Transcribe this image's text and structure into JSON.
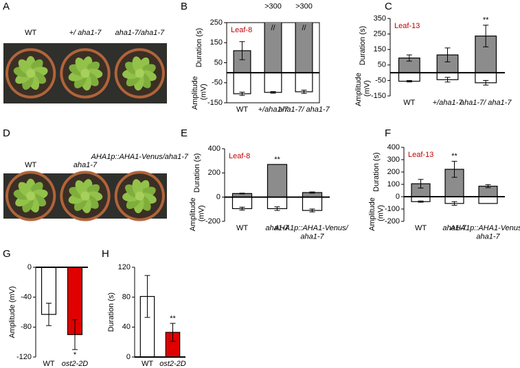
{
  "photos": [
    {
      "panel": "A",
      "labels": [
        "WT",
        "+/ aha1-7",
        "aha1-7/aha1-7"
      ]
    },
    {
      "panel": "D",
      "labels": [
        "WT",
        "aha1-7",
        "AHA1p::AHA1-Venus/aha1-7"
      ]
    }
  ],
  "chart_data": [
    {
      "type": "bar",
      "panel": "B",
      "note": "Leaf-8",
      "categories": [
        "WT",
        "+/aha1-7",
        "aha1-7/ aha1-7"
      ],
      "ylim": [
        -150,
        250
      ],
      "yticks": [
        250,
        150,
        50,
        -50,
        -150
      ],
      "series": [
        {
          "name": "Duration (s)",
          "color": "#8c8c8c",
          "values": [
            110,
            300,
            300
          ],
          "value_labels": [
            null,
            ">300",
            ">300"
          ],
          "errors": [
            45,
            null,
            null
          ]
        },
        {
          "name": "Amplitude (mV)",
          "color": "#ffffff",
          "values": [
            -105,
            -98,
            -95
          ],
          "errors": [
            8,
            4,
            8
          ]
        }
      ],
      "annotations": [
        {
          "text": "//",
          "category": 1
        },
        {
          "text": "//",
          "category": 2
        }
      ]
    },
    {
      "type": "bar",
      "panel": "C",
      "note": "Leaf-13",
      "categories": [
        "WT",
        "+/aha1-7",
        "aha1-7/ aha1-7"
      ],
      "ylim": [
        -150,
        350
      ],
      "yticks": [
        350,
        250,
        150,
        50,
        -50,
        -150
      ],
      "series": [
        {
          "name": "Duration (s)",
          "color": "#8c8c8c",
          "values": [
            95,
            115,
            237
          ],
          "errors": [
            20,
            45,
            70
          ]
        },
        {
          "name": "Amplitude (mV)",
          "color": "#ffffff",
          "values": [
            -55,
            -45,
            -65
          ],
          "errors": [
            5,
            15,
            15
          ]
        }
      ],
      "annotations": [
        {
          "text": "**",
          "category": 2,
          "series": 0
        }
      ]
    },
    {
      "type": "bar",
      "panel": "E",
      "note": "Leaf-8",
      "categories": [
        "WT",
        "aha1-7",
        "AHA1p::AHA1-Venus/ aha1-7"
      ],
      "ylim": [
        -200,
        400
      ],
      "yticks": [
        400,
        200,
        0,
        -200
      ],
      "series": [
        {
          "name": "Duration (s)",
          "color": "#8c8c8c",
          "values": [
            30,
            270,
            38
          ],
          "errors": [
            3,
            null,
            5
          ]
        },
        {
          "name": "Amplitude (mV)",
          "color": "#ffffff",
          "values": [
            -95,
            -95,
            -110
          ],
          "errors": [
            12,
            15,
            12
          ]
        }
      ],
      "annotations": [
        {
          "text": "**",
          "category": 1,
          "series": 0
        }
      ]
    },
    {
      "type": "bar",
      "panel": "F",
      "note": "Leaf-13",
      "categories": [
        "WT",
        "aha1-7",
        "AHA1p::AHA1-Venus/ aha1-7"
      ],
      "ylim": [
        -200,
        400
      ],
      "yticks": [
        400,
        300,
        200,
        100,
        0,
        -100,
        -200
      ],
      "series": [
        {
          "name": "Duration (s)",
          "color": "#8c8c8c",
          "values": [
            105,
            222,
            85
          ],
          "errors": [
            35,
            65,
            12
          ]
        },
        {
          "name": "Amplitude (mV)",
          "color": "#ffffff",
          "values": [
            -40,
            -55,
            -55
          ],
          "errors": [
            5,
            15,
            null
          ]
        }
      ],
      "annotations": [
        {
          "text": "**",
          "category": 1,
          "series": 0
        }
      ]
    },
    {
      "type": "bar",
      "panel": "G",
      "ylabel": "Amplitude (mV)",
      "categories": [
        "WT",
        "ost2-2D"
      ],
      "ylim": [
        -120,
        0
      ],
      "yticks": [
        0,
        -40,
        -80,
        -120
      ],
      "series": [
        {
          "colors": [
            "#ffffff",
            "#e00000"
          ],
          "values": [
            -63,
            -90
          ],
          "errors": [
            15,
            20
          ]
        }
      ],
      "annotations": [
        {
          "text": "*",
          "category": 1,
          "series": 0
        }
      ]
    },
    {
      "type": "bar",
      "panel": "H",
      "ylabel": "Duration (s)",
      "categories": [
        "WT",
        "ost2-2D"
      ],
      "ylim": [
        0,
        120
      ],
      "yticks": [
        0,
        40,
        80,
        120
      ],
      "series": [
        {
          "colors": [
            "#ffffff",
            "#e00000"
          ],
          "values": [
            81,
            33
          ],
          "errors": [
            28,
            12
          ]
        }
      ],
      "annotations": [
        {
          "text": "**",
          "category": 1,
          "series": 0
        }
      ]
    }
  ]
}
